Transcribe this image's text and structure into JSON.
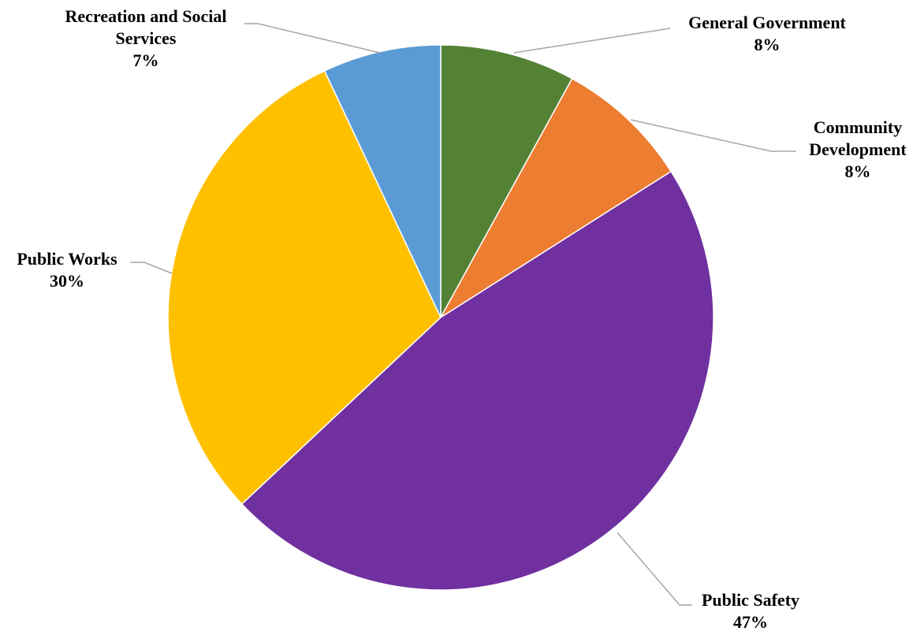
{
  "chart_data": {
    "type": "pie",
    "start_angle_deg": 0,
    "direction": "clockwise",
    "slices": [
      {
        "label": "General Government",
        "value": 8,
        "value_label": "8%",
        "color": "#548235"
      },
      {
        "label": "Community Development",
        "value": 8,
        "value_label": "8%",
        "color": "#ed7d31"
      },
      {
        "label": "Public Safety",
        "value": 47,
        "value_label": "47%",
        "color": "#7030a0"
      },
      {
        "label": "Public Works",
        "value": 30,
        "value_label": "30%",
        "color": "#ffc000"
      },
      {
        "label": "Recreation and Social Services",
        "value": 7,
        "value_label": "7%",
        "color": "#5b9bd5"
      }
    ],
    "label_lines": [
      [
        "General Government",
        "8%"
      ],
      [
        "Community",
        "Development",
        "8%"
      ],
      [
        "Public Safety",
        "47%"
      ],
      [
        "Public Works",
        "30%"
      ],
      [
        "Recreation and Social",
        "Services",
        "7%"
      ]
    ],
    "data_labels": "outside with leader lines",
    "legend": "none"
  }
}
